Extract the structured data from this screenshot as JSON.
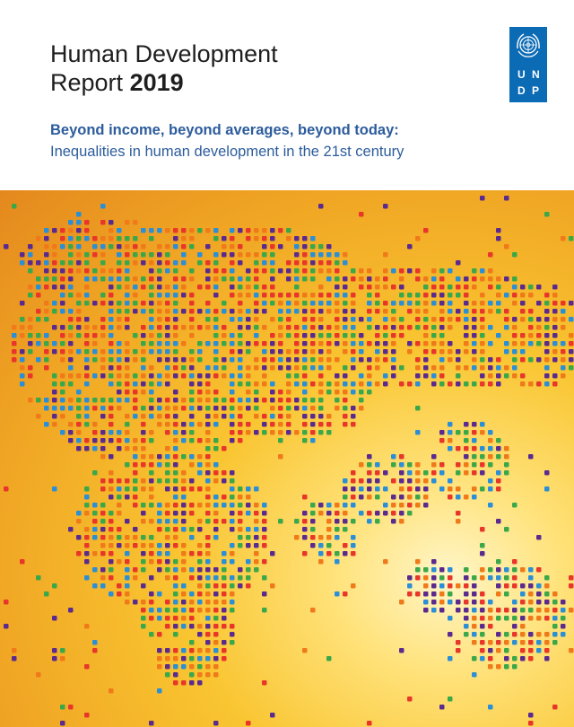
{
  "report": {
    "title_line1": "Human Development",
    "title_line2_prefix": "Report",
    "title_year": "2019",
    "subtitle_line1": "Beyond income, beyond averages, beyond today:",
    "subtitle_line2": "Inequalities in human development in the 21st century"
  },
  "logo": {
    "letter_1": "U",
    "letter_2": "N",
    "letter_3": "D",
    "letter_4": "P",
    "bg_color": "#0b6bb5"
  },
  "cover_art": {
    "dot_colors": [
      "#e8362a",
      "#5a2a8f",
      "#3aa84a",
      "#2a8fd6",
      "#f07a1a"
    ],
    "background_colors": [
      "#fff6c8",
      "#f9c531",
      "#e4881e"
    ]
  },
  "colors": {
    "title": "#1e1e1e",
    "subtitle": "#2c5c9c"
  }
}
